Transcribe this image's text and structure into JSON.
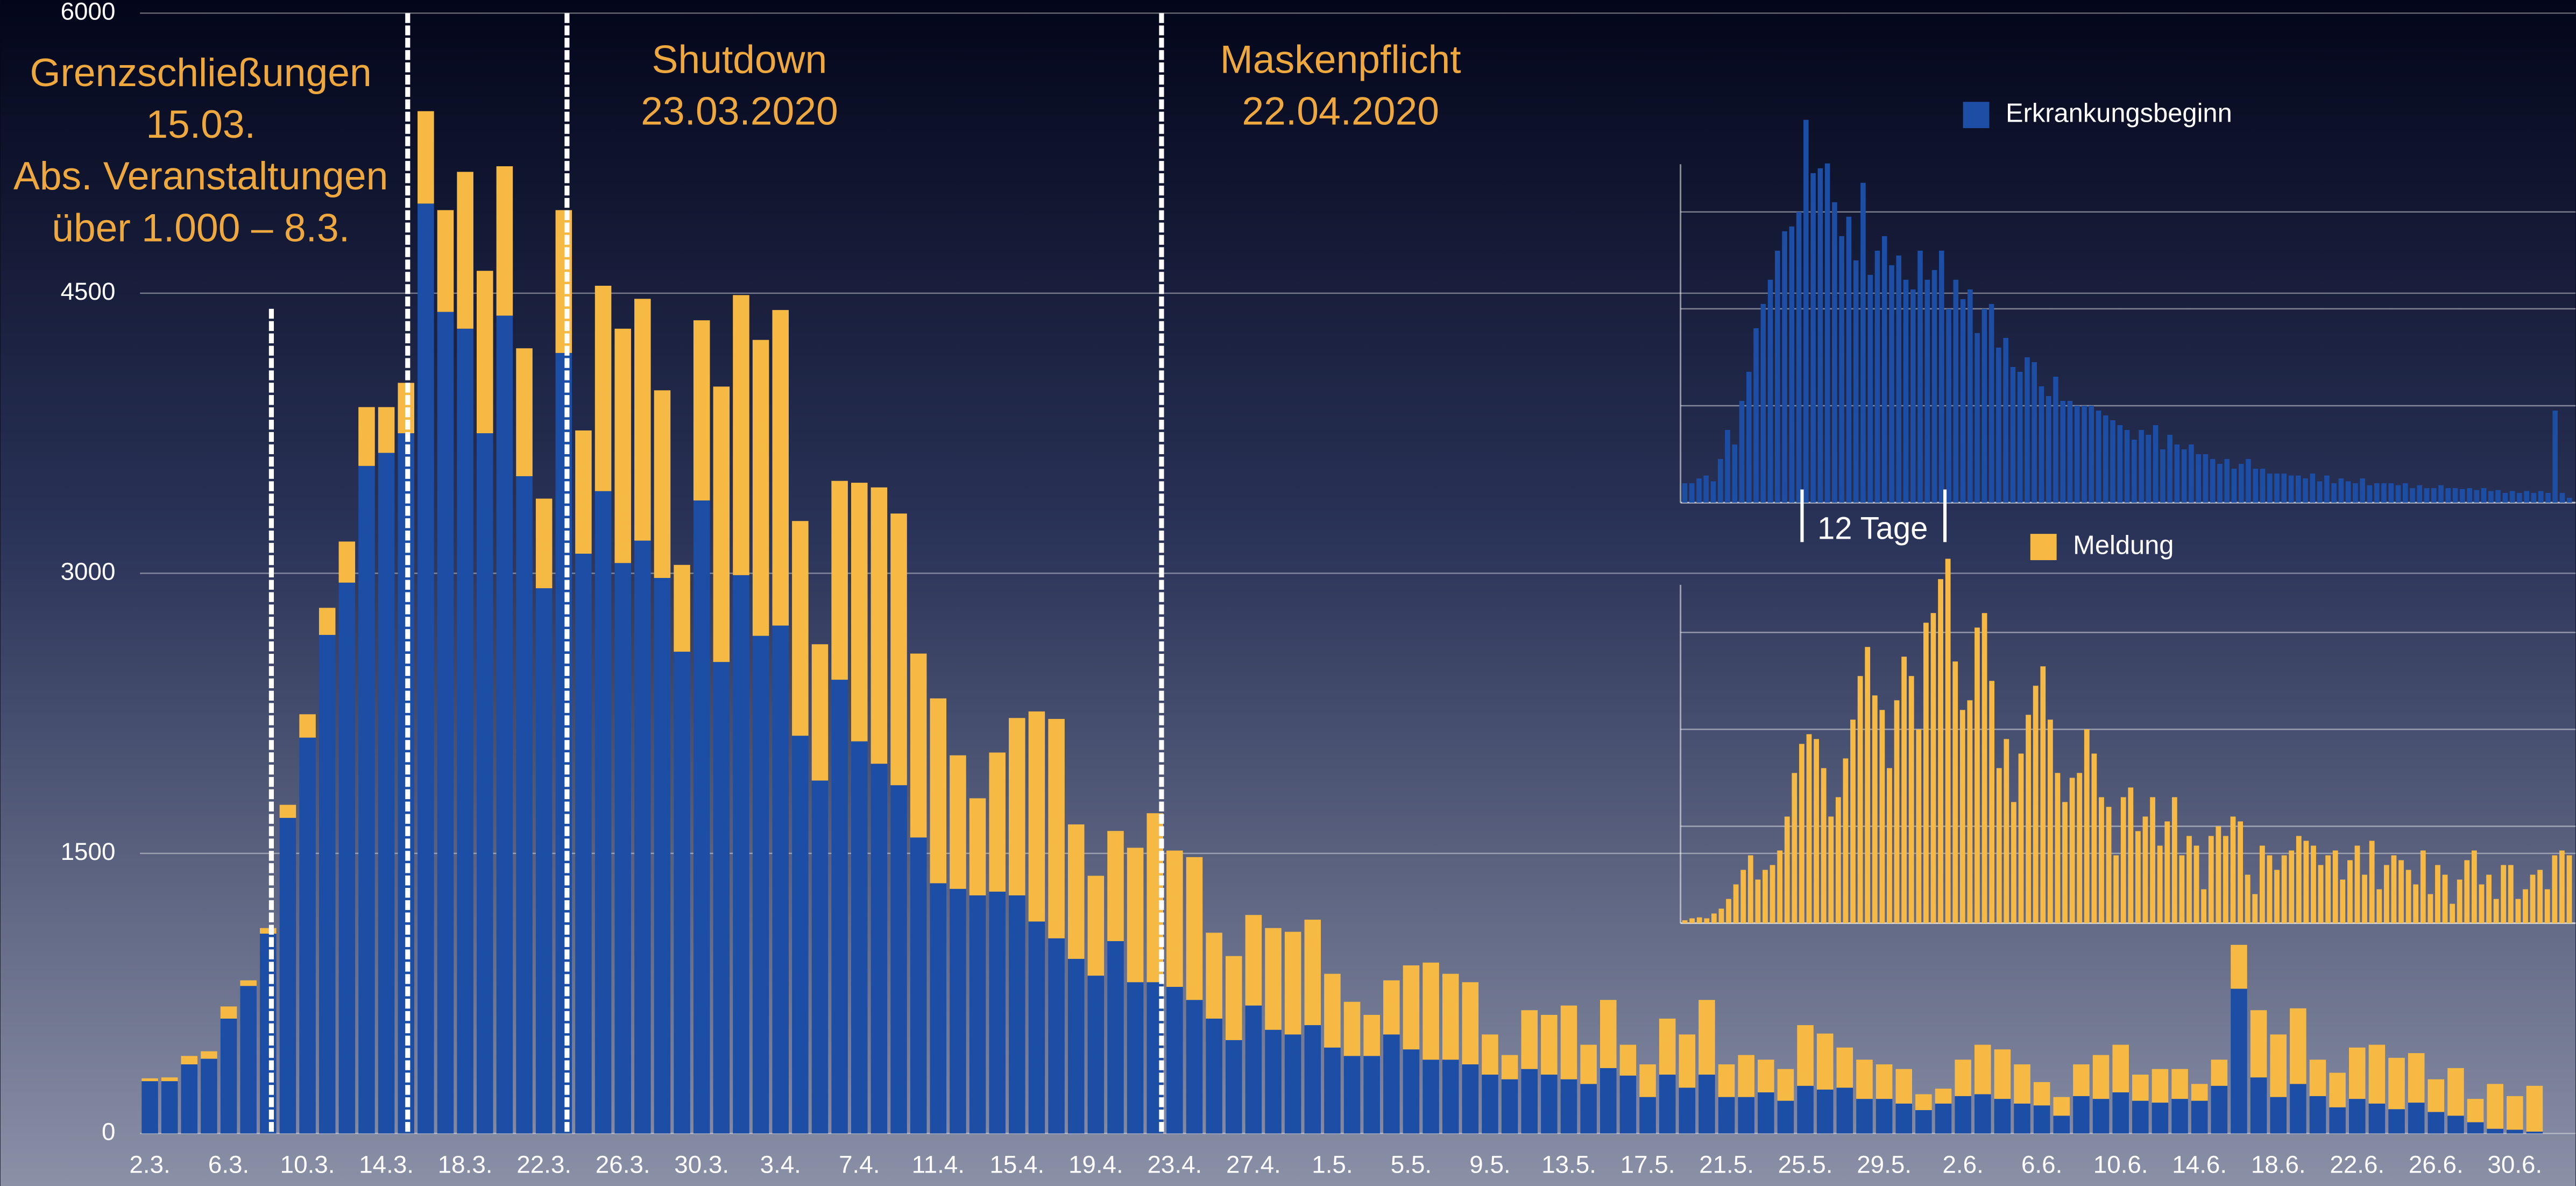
{
  "chart_data": [
    {
      "type": "stacked_bar",
      "categories": [
        "2.3.",
        null,
        null,
        null,
        "6.3.",
        null,
        null,
        null,
        "10.3.",
        null,
        null,
        null,
        "14.3.",
        null,
        null,
        null,
        "18.3.",
        null,
        null,
        null,
        "22.3.",
        null,
        null,
        null,
        "26.3.",
        null,
        null,
        null,
        "30.3.",
        null,
        null,
        null,
        "3.4.",
        null,
        null,
        null,
        "7.4.",
        null,
        null,
        null,
        "11.4.",
        null,
        null,
        null,
        "15.4.",
        null,
        null,
        null,
        "19.4.",
        null,
        null,
        null,
        "23.4.",
        null,
        null,
        null,
        "27.4.",
        null,
        null,
        null,
        "1.5.",
        null,
        null,
        null,
        "5.5.",
        null,
        null,
        null,
        "9.5.",
        null,
        null,
        null,
        "13.5.",
        null,
        null,
        null,
        "17.5.",
        null,
        null,
        null,
        "21.5.",
        null,
        null,
        null,
        "25.5.",
        null,
        null,
        null,
        "29.5.",
        null,
        null,
        null,
        "2.6.",
        null,
        null,
        null,
        "6.6.",
        null,
        null,
        null,
        "10.6.",
        null,
        null,
        null,
        "14.6.",
        null,
        null,
        null,
        "18.6.",
        null,
        null,
        null,
        "22.6.",
        null,
        null,
        null,
        "26.6.",
        null,
        null,
        null,
        "30.6.",
        null
      ],
      "series": [
        {
          "color": "#1d4ea6",
          "values": [
            280,
            280,
            370,
            400,
            615,
            790,
            1070,
            1690,
            2120,
            2670,
            2950,
            3575,
            3645,
            3750,
            4980,
            4400,
            4310,
            3750,
            4380,
            3520,
            2920,
            4180,
            3105,
            3440,
            3055,
            3175,
            2975,
            2580,
            3390,
            2525,
            2990,
            2665,
            2720,
            2130,
            1890,
            2430,
            2100,
            1980,
            1865,
            1585,
            1340,
            1310,
            1275,
            1295,
            1275,
            1135,
            1045,
            935,
            845,
            1030,
            810,
            810,
            785,
            715,
            615,
            500,
            685,
            555,
            530,
            580,
            460,
            415,
            415,
            530,
            450,
            395,
            395,
            370,
            315,
            290,
            345,
            315,
            290,
            265,
            350,
            310,
            195,
            315,
            245,
            315,
            195,
            195,
            220,
            175,
            255,
            235,
            245,
            185,
            185,
            160,
            125,
            160,
            200,
            210,
            185,
            160,
            150,
            95,
            200,
            185,
            220,
            175,
            165,
            185,
            175,
            255,
            775,
            300,
            195,
            265,
            200,
            140,
            185,
            160,
            130,
            165,
            115,
            95,
            60,
            25,
            20,
            10
          ]
        },
        {
          "color": "#f6b944",
          "values": [
            15,
            20,
            45,
            40,
            65,
            30,
            30,
            70,
            125,
            145,
            220,
            315,
            245,
            270,
            495,
            545,
            840,
            870,
            800,
            685,
            480,
            765,
            660,
            1100,
            1255,
            1295,
            1005,
            465,
            965,
            1475,
            1500,
            1585,
            1690,
            1150,
            730,
            1065,
            1385,
            1480,
            1455,
            985,
            990,
            715,
            520,
            745,
            950,
            1125,
            1175,
            720,
            535,
            590,
            720,
            905,
            730,
            765,
            460,
            450,
            485,
            545,
            550,
            565,
            395,
            290,
            220,
            290,
            450,
            520,
            460,
            440,
            215,
            130,
            315,
            320,
            395,
            210,
            365,
            165,
            175,
            300,
            285,
            400,
            175,
            225,
            175,
            170,
            325,
            300,
            215,
            210,
            185,
            185,
            85,
            80,
            195,
            265,
            265,
            210,
            125,
            100,
            170,
            235,
            255,
            140,
            180,
            160,
            90,
            140,
            235,
            360,
            335,
            405,
            195,
            185,
            275,
            315,
            275,
            265,
            175,
            255,
            125,
            240,
            180,
            245
          ]
        }
      ],
      "ylim": [
        0,
        6000
      ],
      "yticks": [
        0,
        1500,
        3000,
        4500,
        6000
      ],
      "grid": true,
      "annotations": [
        [
          "Grenzschließungen",
          "15.03.",
          "Abs. Veranstaltungen",
          "über 1.000 – 8.3."
        ],
        [
          "Shutdown",
          "23.03.2020"
        ],
        [
          "Maskenpflicht",
          "22.04.2020"
        ]
      ]
    },
    {
      "type": "bar",
      "ylim": [
        0,
        4
      ],
      "gridlines": [
        1,
        2,
        3
      ],
      "series": [
        {
          "name": "Erkrankungsbeginn",
          "color": "#1d4ea6",
          "values": [
            0.2,
            0.2,
            0.25,
            0.28,
            0.22,
            0.45,
            0.75,
            0.6,
            1.05,
            1.35,
            1.8,
            2.05,
            2.3,
            2.6,
            2.8,
            2.85,
            3.0,
            3.95,
            3.4,
            3.45,
            3.5,
            3.1,
            2.75,
            2.95,
            2.5,
            3.3,
            2.35,
            2.6,
            2.75,
            2.45,
            2.55,
            2.3,
            2.2,
            2.6,
            2.3,
            2.4,
            2.6,
            2.0,
            2.3,
            2.1,
            2.2,
            1.75,
            2.0,
            2.05,
            1.6,
            1.7,
            1.4,
            1.35,
            1.5,
            1.45,
            1.2,
            1.1,
            1.3,
            1.05,
            1.05,
            1.0,
            1.0,
            1.0,
            0.95,
            0.9,
            0.85,
            0.8,
            0.75,
            0.65,
            0.75,
            0.7,
            0.8,
            0.55,
            0.7,
            0.6,
            0.55,
            0.6,
            0.5,
            0.5,
            0.45,
            0.4,
            0.45,
            0.35,
            0.4,
            0.45,
            0.35,
            0.35,
            0.3,
            0.3,
            0.3,
            0.28,
            0.28,
            0.25,
            0.3,
            0.22,
            0.28,
            0.2,
            0.25,
            0.22,
            0.2,
            0.25,
            0.18,
            0.2,
            0.2,
            0.2,
            0.18,
            0.2,
            0.15,
            0.18,
            0.15,
            0.15,
            0.18,
            0.15,
            0.15,
            0.14,
            0.15,
            0.13,
            0.15,
            0.12,
            0.13,
            0.1,
            0.12,
            0.1,
            0.12,
            0.1,
            0.12,
            0.1,
            0.95,
            0.1,
            0.05
          ]
        }
      ],
      "annotations": [
        "12 Tage"
      ]
    },
    {
      "type": "bar",
      "ylim": [
        0,
        4
      ],
      "gridlines": [
        1,
        2,
        3
      ],
      "series": [
        {
          "name": "Meldung",
          "color": "#f6b944",
          "values": [
            0.03,
            0.05,
            0.06,
            0.05,
            0.1,
            0.15,
            0.25,
            0.4,
            0.55,
            0.7,
            0.45,
            0.55,
            0.6,
            0.75,
            1.1,
            1.55,
            1.85,
            1.95,
            1.9,
            1.6,
            1.1,
            1.3,
            1.7,
            2.1,
            2.55,
            2.85,
            2.35,
            2.2,
            1.6,
            2.3,
            2.75,
            2.55,
            2.0,
            3.1,
            3.2,
            3.55,
            3.76,
            2.7,
            2.2,
            2.3,
            3.05,
            3.2,
            2.5,
            1.6,
            1.9,
            1.25,
            1.75,
            2.15,
            2.45,
            2.65,
            2.1,
            1.55,
            1.25,
            1.5,
            1.55,
            2.0,
            1.75,
            1.3,
            1.2,
            0.7,
            1.3,
            1.4,
            0.95,
            1.1,
            1.3,
            0.8,
            1.05,
            1.3,
            0.7,
            0.9,
            0.8,
            0.35,
            0.9,
            1.0,
            0.9,
            1.1,
            1.05,
            0.5,
            0.3,
            0.8,
            0.7,
            0.55,
            0.7,
            0.75,
            0.9,
            0.85,
            0.8,
            0.6,
            0.7,
            0.75,
            0.45,
            0.65,
            0.8,
            0.5,
            0.85,
            0.35,
            0.6,
            0.7,
            0.65,
            0.55,
            0.4,
            0.75,
            0.3,
            0.6,
            0.5,
            0.2,
            0.45,
            0.65,
            0.75,
            0.4,
            0.5,
            0.25,
            0.6,
            0.6,
            0.25,
            0.35,
            0.5,
            0.55,
            0.35,
            0.7,
            0.75,
            0.7
          ]
        }
      ]
    }
  ]
}
